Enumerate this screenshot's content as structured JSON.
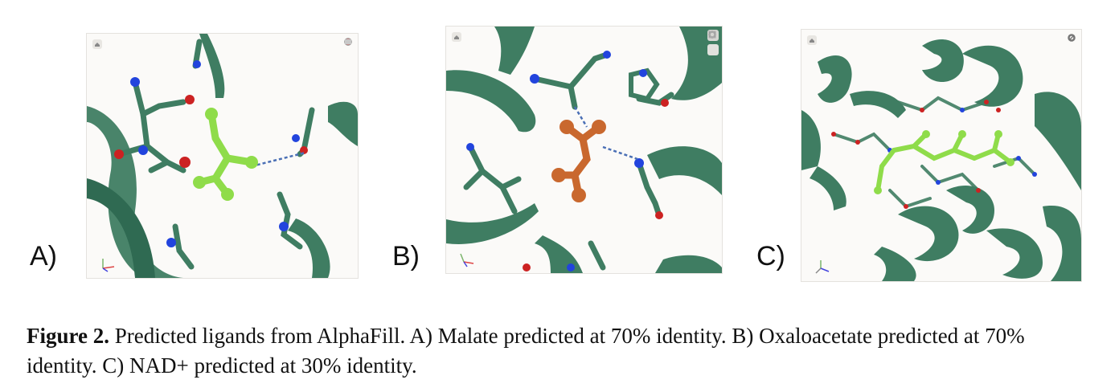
{
  "panels": [
    {
      "label": "A)",
      "ligand_color": "#8fdc4a"
    },
    {
      "label": "B)",
      "ligand_color": "#c9682e"
    },
    {
      "label": "C)",
      "ligand_color": "#8fdc4a"
    }
  ],
  "colors": {
    "protein": "#3f7d62",
    "nitrogen": "#2244dd",
    "oxygen": "#cc2222",
    "hbond": "#4a6fb5",
    "background": "#fbfaf8"
  },
  "viewer_icons": [
    "home-icon",
    "reset-icon",
    "zoom-icon",
    "settings-icon",
    "camera-icon",
    "expand-icon"
  ],
  "caption": {
    "figure_label": "Figure 2.",
    "text": " Predicted ligands from AlphaFill.  A) Malate predicted at 70% identity. B) Oxaloacetate predicted at 70% identity. C) NAD+ predicted at 30% identity."
  }
}
